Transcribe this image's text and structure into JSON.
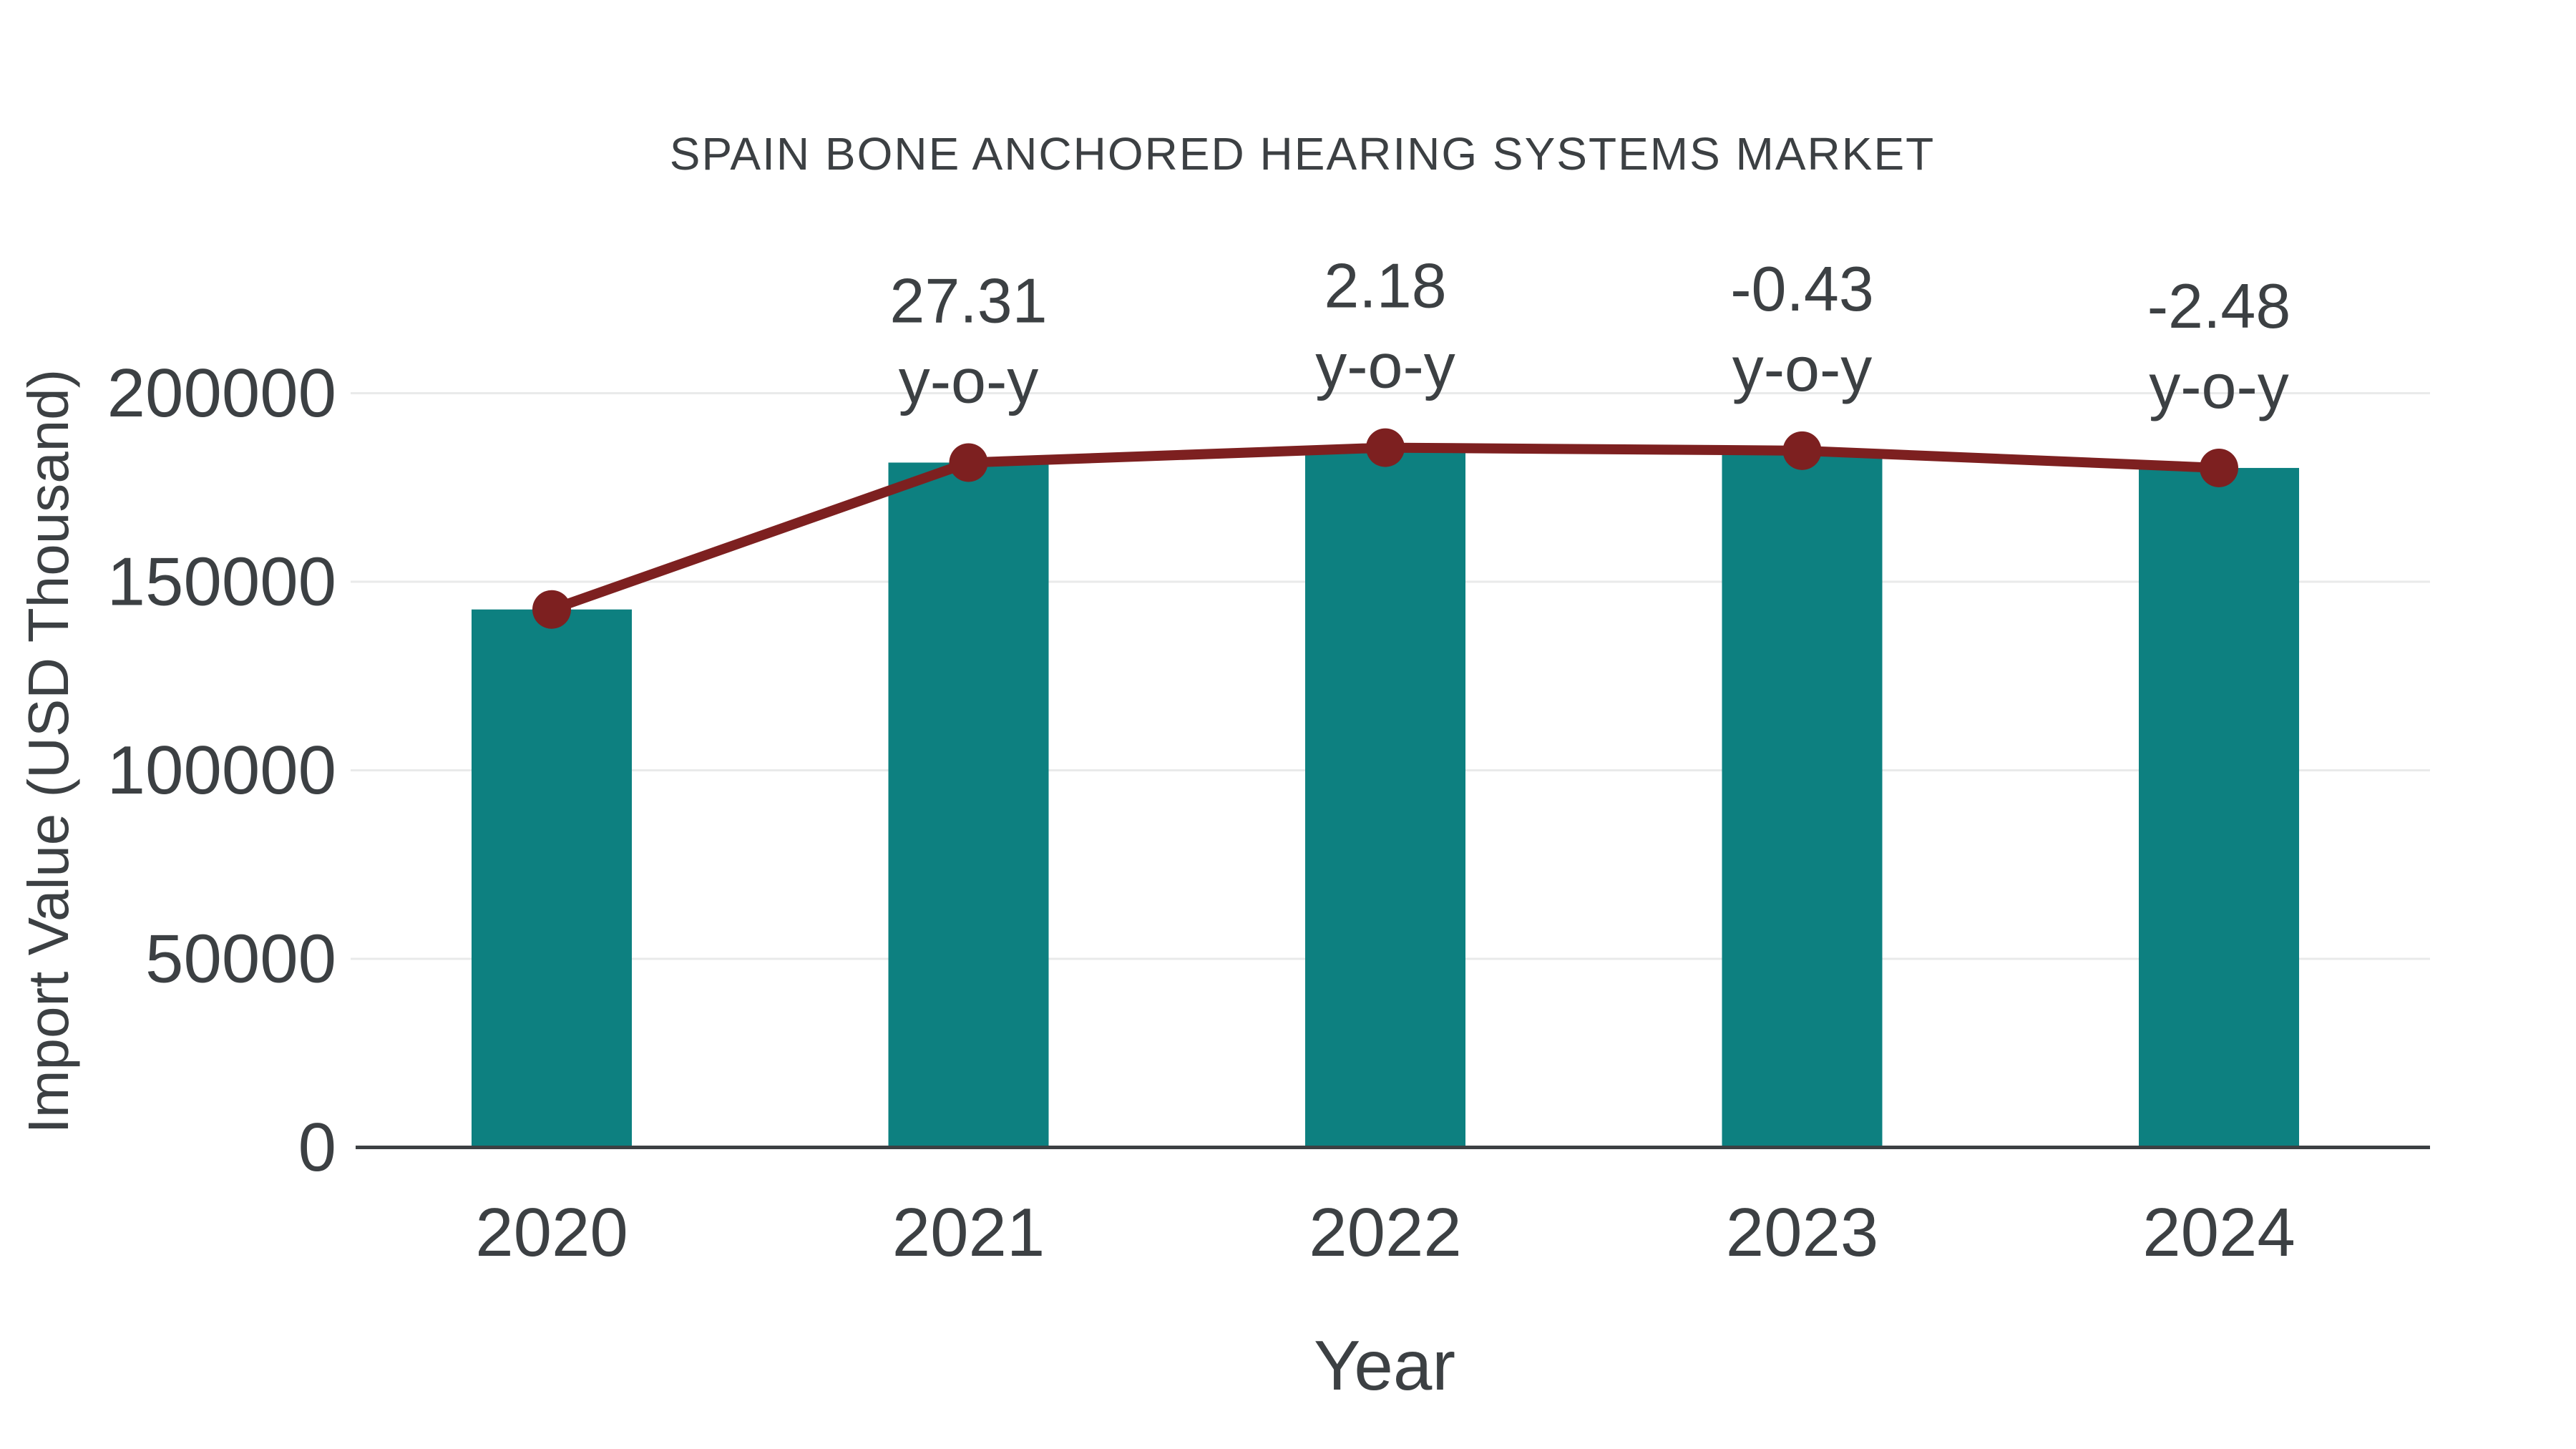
{
  "colors": {
    "bar_teal": "#0d8080",
    "line_maroon": "#7d2020",
    "gridline": "#e9eaea",
    "axis_line": "#3c4043",
    "text": "#3c4043",
    "background": "#ffffff"
  },
  "chart_data": {
    "type": "bar",
    "title": "SPAIN BONE ANCHORED HEARING SYSTEMS MARKET",
    "xlabel": "Year",
    "ylabel": "Import Value (USD Thousand)",
    "categories": [
      "2020",
      "2021",
      "2022",
      "2023",
      "2024"
    ],
    "series": [
      {
        "name": "Import Value bars",
        "type": "bar",
        "color": "#0d8080",
        "values": [
          142650,
          181600,
          185560,
          184760,
          180180
        ]
      },
      {
        "name": "Import Value trend line",
        "type": "line",
        "color": "#7d2020",
        "values": [
          142650,
          181600,
          185560,
          184760,
          180180
        ]
      }
    ],
    "annotations": [
      {
        "category": "2021",
        "value_label": "27.31",
        "sub_label": "y-o-y"
      },
      {
        "category": "2022",
        "value_label": "2.18",
        "sub_label": "y-o-y"
      },
      {
        "category": "2023",
        "value_label": "-0.43",
        "sub_label": "y-o-y"
      },
      {
        "category": "2024",
        "value_label": "-2.48",
        "sub_label": "y-o-y"
      }
    ],
    "ylim": [
      0,
      200000
    ],
    "yticks": [
      0,
      50000,
      100000,
      150000,
      200000
    ],
    "ytick_labels": [
      "0",
      "50000",
      "100000",
      "150000",
      "200000"
    ],
    "grid": "horizontal",
    "legend": "none"
  }
}
